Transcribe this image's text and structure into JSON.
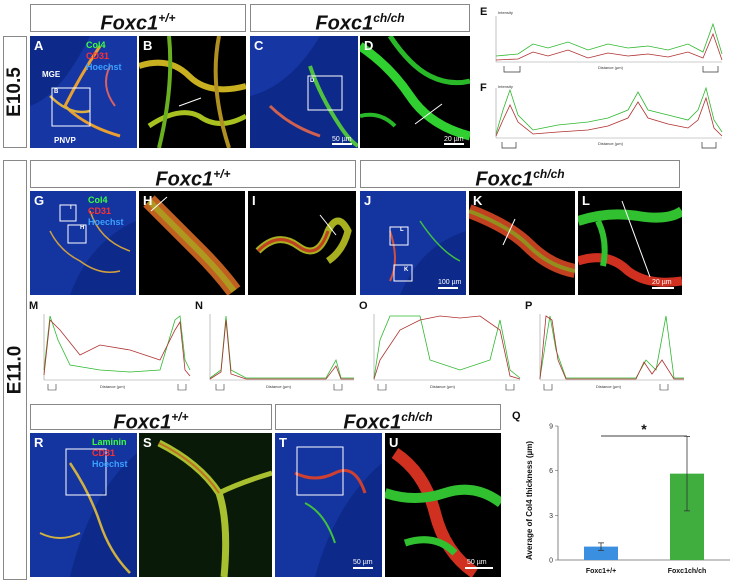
{
  "headers": {
    "top_wt": {
      "gene": "Foxc1",
      "sup": "+/+"
    },
    "top_mut": {
      "gene": "Foxc1",
      "sup": "ch/ch"
    },
    "mid_wt": {
      "gene": "Foxc1",
      "sup": "+/+"
    },
    "mid_mut": {
      "gene": "Foxc1",
      "sup": "ch/ch"
    },
    "bot_wt": {
      "gene": "Foxc1",
      "sup": "+/+"
    },
    "bot_mut": {
      "gene": "Foxc1",
      "sup": "ch/ch"
    }
  },
  "row_labels": {
    "e105": "E10.5",
    "e110": "E11.0"
  },
  "panel_letters": [
    "A",
    "B",
    "C",
    "D",
    "E",
    "F",
    "G",
    "H",
    "I",
    "J",
    "K",
    "L",
    "M",
    "N",
    "O",
    "P",
    "Q",
    "R",
    "S",
    "T",
    "U"
  ],
  "stains_top": [
    "Col4",
    "CD31",
    "Hoechst"
  ],
  "stains_mid": [
    "Col4",
    "CD31",
    "Hoechst"
  ],
  "stains_bot": [
    "Laminin",
    "CD31",
    "Hoechst"
  ],
  "region_labels": {
    "mge": "MGE",
    "pnvp": "PNVP",
    "box_b": "B",
    "box_d": "D",
    "box_i": "I",
    "box_h": "H",
    "box_l": "L",
    "box_k": "K"
  },
  "scalebars": {
    "c": "50 µm",
    "d": "20 µm",
    "j": "100 µm",
    "l": "20 µm",
    "t": "50 µm",
    "u": "50 µm"
  },
  "profile_axis": {
    "x": "Distance (µm)",
    "y": "Intensity"
  },
  "colors": {
    "col4": "#2fb82f",
    "cd31": "#b03030",
    "bar_wt": "#3a8fe0",
    "bar_mut": "#3fae3f"
  },
  "chart_data": {
    "type": "bar",
    "categories": [
      "Foxc1+/+",
      "Foxc1ch/ch"
    ],
    "values": [
      0.9,
      5.8
    ],
    "errors": [
      0.25,
      2.5
    ],
    "ylabel": "Average of Col4 thickness (µm)",
    "ylim": [
      0,
      9
    ],
    "yticks": [
      0,
      3,
      6,
      9
    ],
    "significance": "*",
    "colors": [
      "#3a8fe0",
      "#3fae3f"
    ]
  }
}
